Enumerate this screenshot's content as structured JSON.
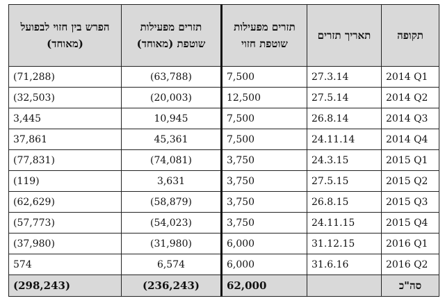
{
  "headers": {
    "period": "תקופה",
    "date": "תאריך תזרים",
    "expected": "תזרים מפעילות שוטפת חזוי",
    "actual": "תזרים מפעילות שוטפת (מאוחד)",
    "diff": "הפרש בין חזוי לבפועל (מאוחד)"
  },
  "rows": [
    {
      "period": "2014 Q1",
      "date": "27.3.14",
      "expected": "7,500",
      "actual": "(63,788)",
      "diff": "(71,288)"
    },
    {
      "period": "2014 Q2",
      "date": "27.5.14",
      "expected": "12,500",
      "actual": "(20,003)",
      "diff": "(32,503)"
    },
    {
      "period": "2014 Q3",
      "date": "26.8.14",
      "expected": "7,500",
      "actual": "10,945",
      "diff": "3,445"
    },
    {
      "period": "2014 Q4",
      "date": "24.11.14",
      "expected": "7,500",
      "actual": "45,361",
      "diff": "37,861"
    },
    {
      "period": "2015 Q1",
      "date": "24.3.15",
      "expected": "3,750",
      "actual": "(74,081)",
      "diff": "(77,831)"
    },
    {
      "period": "2015 Q2",
      "date": "27.5.15",
      "expected": "3,750",
      "actual": "3,631",
      "diff": "(119)"
    },
    {
      "period": "2015 Q3",
      "date": "26.8.15",
      "expected": "3,750",
      "actual": "(58,879)",
      "diff": "(62,629)"
    },
    {
      "period": "2015 Q4",
      "date": "24.11.15",
      "expected": "3,750",
      "actual": "(54,023)",
      "diff": "(57,773)"
    },
    {
      "period": "2016 Q1",
      "date": "31.12.15",
      "expected": "6,000",
      "actual": "(31,980)",
      "diff": "(37,980)"
    },
    {
      "period": "2016 Q2",
      "date": "31.6.16",
      "expected": "6,000",
      "actual": "6,574",
      "diff": "574"
    }
  ],
  "total": {
    "label": "סה\"כ",
    "date": "",
    "expected": "62,000",
    "actual": "(236,243)",
    "diff": "(298,243)"
  }
}
